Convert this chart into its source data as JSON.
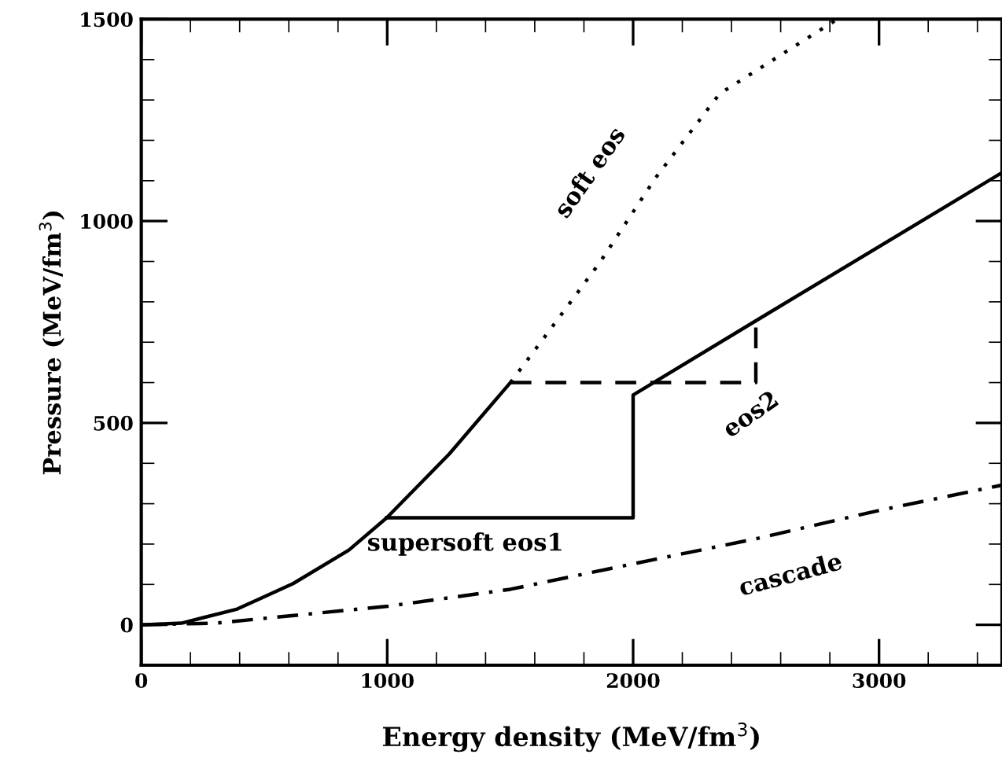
{
  "chart_data": {
    "type": "line",
    "xlabel": "Energy density (MeV/fm$^{3}$)",
    "ylabel": "Pressure (MeV/fm$^{3}$)",
    "xlim": [
      0,
      3500
    ],
    "ylim": [
      -100,
      1500
    ],
    "xticks": [
      0,
      1000,
      2000,
      3000
    ],
    "yticks": [
      0,
      500,
      1000,
      1500
    ],
    "grid": false,
    "marker": "none",
    "series": [
      {
        "color": "#000000",
        "line_style": "solid",
        "x": [
          0,
          163,
          390,
          617,
          844,
          998,
          1252,
          1501
        ],
        "values": [
          0,
          4,
          39,
          102,
          185,
          265,
          423,
          600
        ]
      },
      {
        "name": "soft eos",
        "color": "#000000",
        "line_style": "dotted",
        "x": [
          1501,
          1660,
          1864,
          2090,
          2351,
          2830
        ],
        "values": [
          600,
          729,
          897,
          1106,
          1315,
          1500
        ]
      },
      {
        "name": "supersoft eos1",
        "color": "#000000",
        "line_style": "solid",
        "x": [
          998,
          2000,
          2000,
          2499,
          3500
        ],
        "values": [
          265,
          265,
          569,
          753,
          1120
        ]
      },
      {
        "name": "eos2",
        "color": "#000000",
        "line_style": "dashed",
        "x": [
          1501,
          2499,
          2499
        ],
        "values": [
          600,
          600,
          753
        ]
      },
      {
        "name": "cascade",
        "color": "#000000",
        "line_style": "dashdot",
        "x": [
          0,
          300,
          1002,
          1501,
          2000,
          2499,
          2998,
          3500
        ],
        "values": [
          0,
          4,
          46,
          88,
          151,
          213,
          283,
          346
        ]
      }
    ]
  }
}
